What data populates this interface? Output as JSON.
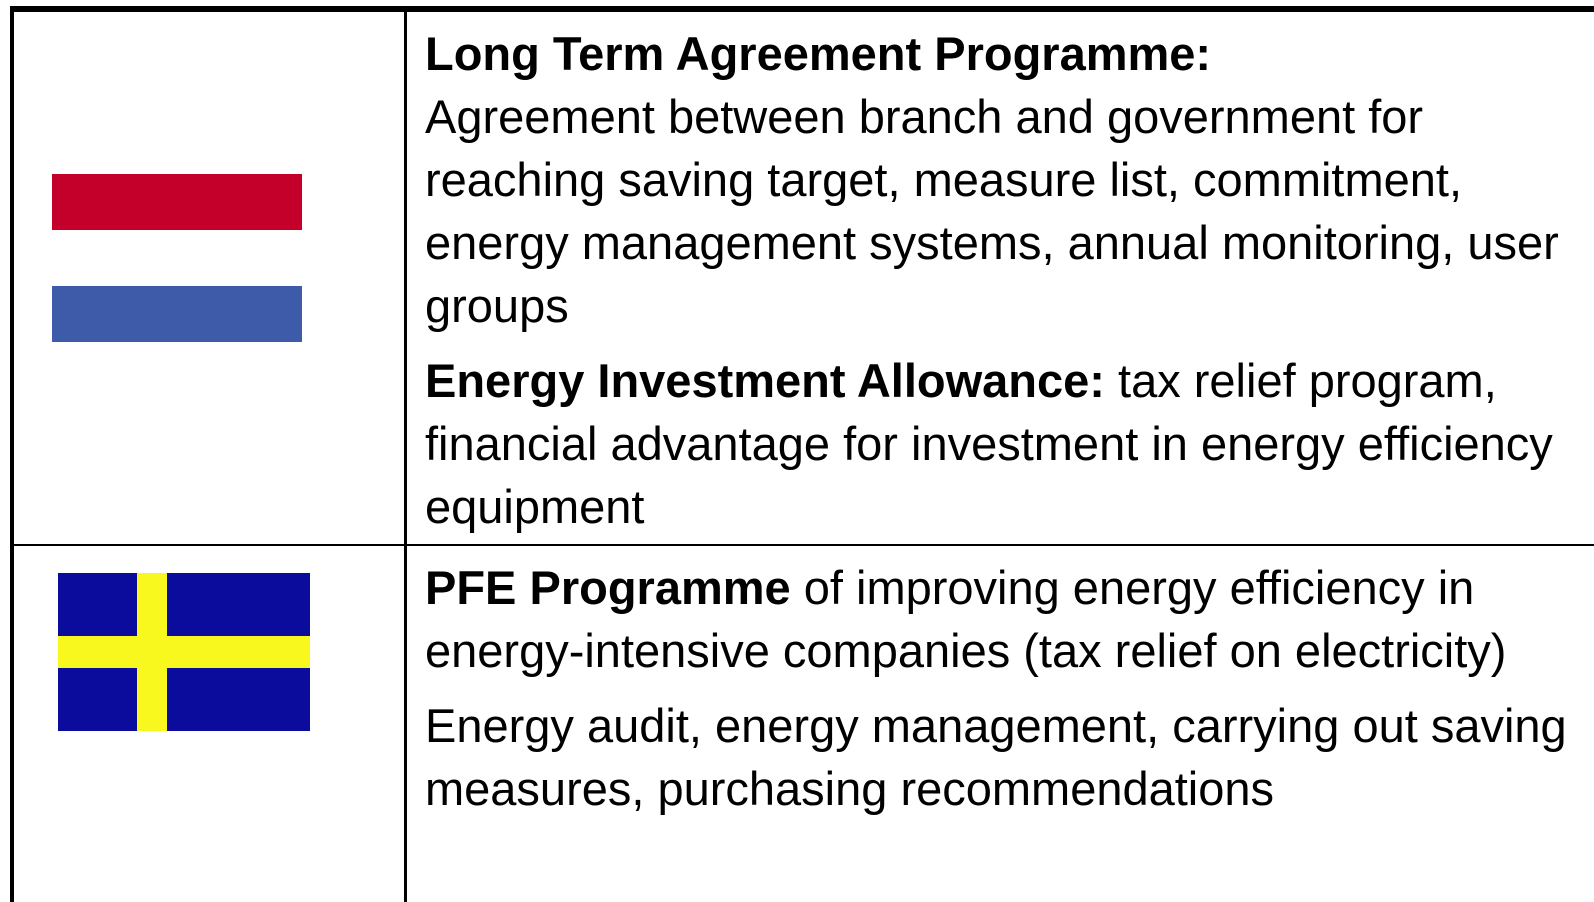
{
  "table": {
    "rows": [
      {
        "paragraphs": [
          {
            "bold": "Long Term Agreement Programme:",
            "text": "Agreement between branch and government for reaching saving target, measure list, commitment, energy management systems, annual monitoring, user groups"
          },
          {
            "bold": "Energy Investment Allowance:",
            "text": "tax relief program, financial advantage for investment in energy efficiency equipment"
          }
        ]
      },
      {
        "paragraphs": [
          {
            "bold": "PFE Programme",
            "text": "of improving energy efficiency in energy-intensive companies (tax relief on electricity)"
          },
          {
            "text": "Energy audit, energy management, carrying out saving measures, purchasing recommendations"
          }
        ]
      }
    ]
  }
}
